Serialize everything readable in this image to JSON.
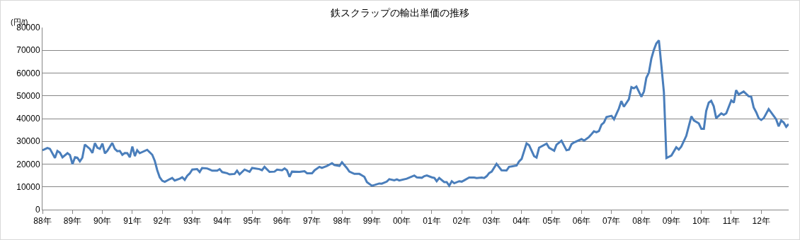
{
  "chart_data": {
    "type": "line",
    "title": "鉄スクラップの輸出単価の推移",
    "ylabel": "(円/t)",
    "x": [
      "1988-01",
      "1988-03",
      "1988-04",
      "1988-06",
      "1988-07",
      "1988-08",
      "1988-09",
      "1988-11",
      "1988-12",
      "1989-01",
      "1989-02",
      "1989-03",
      "1989-04",
      "1989-05",
      "1989-06",
      "1989-08",
      "1989-09",
      "1989-10",
      "1989-11",
      "1989-12",
      "1990-01",
      "1990-02",
      "1990-03",
      "1990-05",
      "1990-06",
      "1990-07",
      "1990-08",
      "1990-09",
      "1990-10",
      "1990-11",
      "1990-12",
      "1991-01",
      "1991-02",
      "1991-03",
      "1991-04",
      "1991-07",
      "1991-09",
      "1991-10",
      "1991-11",
      "1991-12",
      "1992-01",
      "1992-02",
      "1992-04",
      "1992-05",
      "1992-06",
      "1992-08",
      "1992-09",
      "1992-10",
      "1992-11",
      "1992-12",
      "1993-01",
      "1993-03",
      "1993-04",
      "1993-05",
      "1993-07",
      "1993-08",
      "1993-09",
      "1993-11",
      "1993-12",
      "1994-01",
      "1994-03",
      "1994-04",
      "1994-06",
      "1994-07",
      "1994-08",
      "1994-10",
      "1994-12",
      "1995-01",
      "1995-04",
      "1995-05",
      "1995-06",
      "1995-08",
      "1995-10",
      "1995-11",
      "1996-01",
      "1996-02",
      "1996-03",
      "1996-04",
      "1996-05",
      "1996-08",
      "1996-10",
      "1996-11",
      "1997-01",
      "1997-02",
      "1997-04",
      "1997-05",
      "1997-07",
      "1997-09",
      "1997-10",
      "1997-12",
      "1998-01",
      "1998-03",
      "1998-04",
      "1998-06",
      "1998-08",
      "1998-10",
      "1998-11",
      "1999-01",
      "1999-02",
      "1999-04",
      "1999-05",
      "1999-07",
      "1999-08",
      "1999-10",
      "1999-11",
      "1999-12",
      "2000-03",
      "2000-06",
      "2000-07",
      "2000-09",
      "2000-10",
      "2000-11",
      "2001-01",
      "2001-02",
      "2001-03",
      "2001-04",
      "2001-06",
      "2001-07",
      "2001-08",
      "2001-09",
      "2001-10",
      "2001-12",
      "2002-01",
      "2002-02",
      "2002-04",
      "2002-06",
      "2002-07",
      "2002-09",
      "2002-10",
      "2002-11",
      "2002-12",
      "2003-01",
      "2003-03",
      "2003-05",
      "2003-07",
      "2003-08",
      "2003-09",
      "2003-11",
      "2003-12",
      "2004-01",
      "2004-03",
      "2004-04",
      "2004-06",
      "2004-07",
      "2004-08",
      "2004-11",
      "2004-12",
      "2005-02",
      "2005-03",
      "2005-05",
      "2005-07",
      "2005-08",
      "2005-09",
      "2005-10",
      "2006-01",
      "2006-02",
      "2006-04",
      "2006-05",
      "2006-06",
      "2006-07",
      "2006-08",
      "2006-09",
      "2006-10",
      "2006-11",
      "2007-01",
      "2007-02",
      "2007-04",
      "2007-05",
      "2007-06",
      "2007-08",
      "2007-09",
      "2007-10",
      "2007-11",
      "2008-01",
      "2008-02",
      "2008-03",
      "2008-04",
      "2008-05",
      "2008-06",
      "2008-07",
      "2008-08",
      "2008-09",
      "2008-10",
      "2008-11",
      "2009-01",
      "2009-03",
      "2009-04",
      "2009-05",
      "2009-07",
      "2009-09",
      "2009-10",
      "2009-12",
      "2010-01",
      "2010-02",
      "2010-03",
      "2010-04",
      "2010-05",
      "2010-06",
      "2010-07",
      "2010-09",
      "2010-10",
      "2010-11",
      "2011-01",
      "2011-02",
      "2011-03",
      "2011-04",
      "2011-06",
      "2011-08",
      "2011-09",
      "2011-10",
      "2011-11",
      "2011-12",
      "2012-01",
      "2012-02",
      "2012-04",
      "2012-06",
      "2012-07",
      "2012-08",
      "2012-09",
      "2012-10",
      "2012-11",
      "2012-12"
    ],
    "series": [
      {
        "color": "#4a7ebb",
        "values": [
          26100,
          27100,
          26700,
          22700,
          25800,
          25000,
          23000,
          24800,
          24000,
          20000,
          23000,
          22800,
          21200,
          22800,
          28600,
          26700,
          24900,
          29200,
          27200,
          26700,
          29000,
          24700,
          25800,
          29300,
          26700,
          25700,
          25800,
          24100,
          24900,
          24800,
          23000,
          27700,
          23500,
          26100,
          24800,
          26300,
          24100,
          21500,
          17300,
          14200,
          12700,
          12200,
          13400,
          13900,
          12800,
          13600,
          14200,
          13100,
          14900,
          15900,
          17600,
          17800,
          16500,
          18300,
          18100,
          17600,
          17100,
          17100,
          17800,
          16500,
          16000,
          15500,
          15700,
          17100,
          15500,
          17600,
          16600,
          18300,
          17800,
          17300,
          18800,
          16600,
          16700,
          17600,
          17300,
          18100,
          17300,
          14400,
          16700,
          16600,
          16900,
          16000,
          16000,
          17300,
          18800,
          18300,
          19200,
          20400,
          19600,
          19200,
          20800,
          18300,
          16700,
          15700,
          15700,
          14400,
          12100,
          10500,
          10800,
          11500,
          11400,
          12300,
          13400,
          12900,
          13300,
          12800,
          13600,
          15000,
          14200,
          14000,
          14700,
          15000,
          14200,
          13900,
          12500,
          13900,
          12100,
          12100,
          10500,
          12500,
          11600,
          12500,
          12300,
          12900,
          14100,
          14100,
          13900,
          14100,
          13900,
          14700,
          16100,
          16700,
          20100,
          17300,
          17200,
          18800,
          19000,
          19400,
          21200,
          22300,
          29100,
          28300,
          23500,
          22900,
          27200,
          29000,
          27200,
          25900,
          28500,
          30300,
          26100,
          26400,
          28800,
          29500,
          31000,
          30300,
          31900,
          33100,
          34400,
          34000,
          34500,
          37300,
          38300,
          40700,
          41200,
          39700,
          44400,
          47700,
          45200,
          48500,
          53800,
          53300,
          54100,
          49600,
          51900,
          57900,
          60200,
          66300,
          70200,
          73000,
          74400,
          63100,
          51700,
          22700,
          23800,
          27400,
          26400,
          27700,
          32400,
          41000,
          39200,
          37900,
          35500,
          35500,
          43300,
          47000,
          47800,
          45400,
          40200,
          42300,
          41600,
          42300,
          48000,
          47000,
          52500,
          50600,
          51900,
          49800,
          49600,
          44900,
          42800,
          40200,
          39400,
          40200,
          44200,
          41200,
          39700,
          36600,
          39200,
          38300,
          36400,
          37600
        ]
      }
    ],
    "xlim": [
      "1988-01",
      "2012-12"
    ],
    "xticks": [
      {
        "value": "1988",
        "label": "88年"
      },
      {
        "value": "1989",
        "label": "89年"
      },
      {
        "value": "1990",
        "label": "90年"
      },
      {
        "value": "1991",
        "label": "91年"
      },
      {
        "value": "1992",
        "label": "92年"
      },
      {
        "value": "1993",
        "label": "93年"
      },
      {
        "value": "1994",
        "label": "94年"
      },
      {
        "value": "1995",
        "label": "95年"
      },
      {
        "value": "1996",
        "label": "96年"
      },
      {
        "value": "1997",
        "label": "97年"
      },
      {
        "value": "1998",
        "label": "98年"
      },
      {
        "value": "1999",
        "label": "99年"
      },
      {
        "value": "2000",
        "label": "00年"
      },
      {
        "value": "2001",
        "label": "01年"
      },
      {
        "value": "2002",
        "label": "02年"
      },
      {
        "value": "2003",
        "label": "03年"
      },
      {
        "value": "2004",
        "label": "04年"
      },
      {
        "value": "2005",
        "label": "05年"
      },
      {
        "value": "2006",
        "label": "06年"
      },
      {
        "value": "2007",
        "label": "07年"
      },
      {
        "value": "2008",
        "label": "08年"
      },
      {
        "value": "2009",
        "label": "09年"
      },
      {
        "value": "2010",
        "label": "10年"
      },
      {
        "value": "2011",
        "label": "11年"
      },
      {
        "value": "2012",
        "label": "12年"
      }
    ],
    "ylim": [
      0,
      80000
    ],
    "yticks": [
      0,
      10000,
      20000,
      30000,
      40000,
      50000,
      60000,
      70000,
      80000
    ],
    "grid": "y",
    "marker": "none",
    "line_style": "solid"
  }
}
